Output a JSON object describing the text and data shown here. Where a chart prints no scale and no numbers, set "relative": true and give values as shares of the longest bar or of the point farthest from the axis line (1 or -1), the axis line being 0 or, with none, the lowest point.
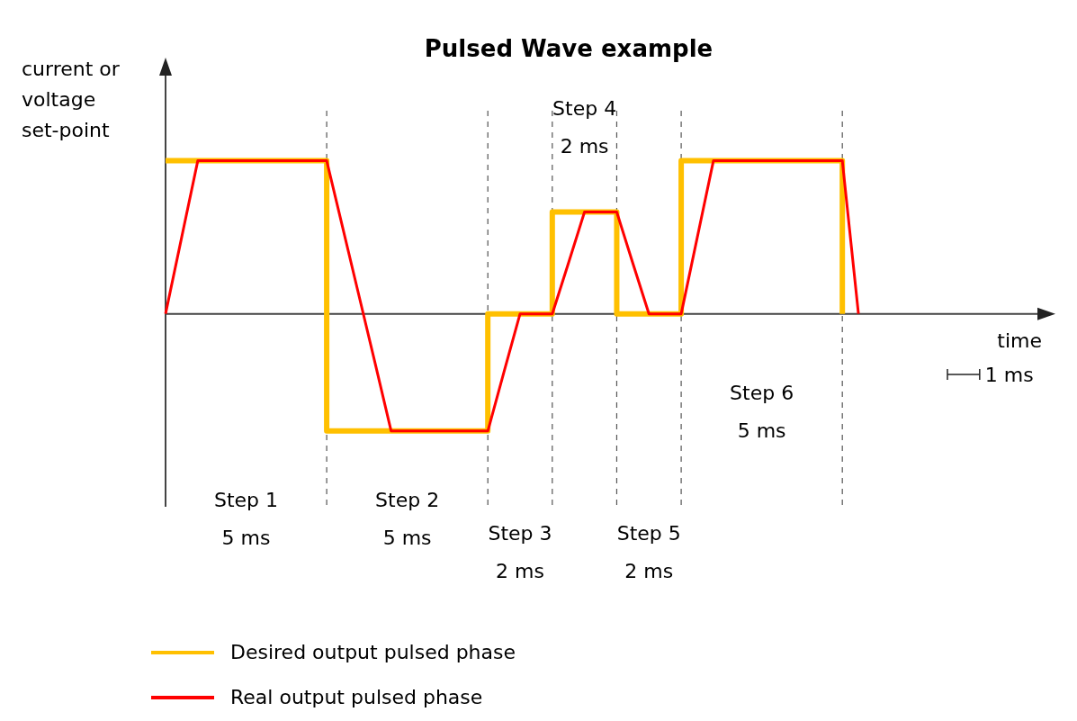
{
  "chart_data": {
    "type": "line",
    "title": "Pulsed Wave example",
    "xlabel": "time",
    "ylabel": "current or\nvoltage\nset-point",
    "relative": true,
    "categories": [
      null,
      null,
      null,
      null,
      null,
      null,
      null,
      null,
      null,
      null,
      null,
      null,
      null,
      null,
      null,
      null,
      null,
      null,
      null,
      null,
      null,
      null,
      null,
      null,
      null,
      null,
      null,
      null,
      null,
      null,
      null,
      null,
      null,
      null,
      null,
      null,
      null,
      null,
      null,
      null,
      null,
      null,
      null,
      null,
      null,
      null,
      null,
      null,
      null,
      null,
      null,
      null,
      null,
      null,
      null,
      null
    ],
    "legend": "bottom left",
    "line_style": "solid",
    "grid": "x",
    "series": [
      {
        "name": "Desired output pulsed phase",
        "type": "step",
        "color": "#ffc000",
        "values": [
          1,
          1,
          1,
          1,
          1,
          1,
          1,
          1,
          1,
          1,
          -0.765,
          -0.765,
          -0.765,
          -0.765,
          -0.765,
          -0.765,
          -0.765,
          -0.765,
          -0.765,
          -0.765,
          0,
          0,
          0,
          0,
          0.665,
          0.665,
          0.665,
          0.665,
          0,
          0,
          0,
          0,
          1,
          1,
          1,
          1,
          1,
          1,
          1,
          1,
          1,
          1,
          0,
          null,
          null,
          null,
          null,
          null,
          null,
          null,
          null,
          null,
          null,
          null,
          null,
          null
        ]
      },
      {
        "name": "Real output pulsed phase",
        "color": "#ff0000",
        "values": [
          0,
          0.5,
          1,
          1,
          1,
          1,
          1,
          1,
          1,
          1,
          1,
          0.56,
          0.12,
          -0.32,
          -0.765,
          -0.765,
          -0.765,
          -0.765,
          -0.765,
          -0.765,
          -0.765,
          -0.38,
          0,
          0,
          0,
          0.33,
          0.665,
          0.665,
          0.665,
          0.33,
          0,
          0,
          0,
          0.5,
          1,
          1,
          1,
          1,
          1,
          1,
          1,
          1,
          1,
          0,
          null,
          null,
          null,
          null,
          null,
          null,
          null,
          null,
          null,
          null,
          null,
          null
        ]
      }
    ],
    "annotations": [
      "Step 1\n5 ms",
      "Step 2\n5 ms",
      "Step 3\n2 ms",
      "Step 4\n2 ms",
      "Step 5\n2 ms",
      "Step 6\n5 ms",
      "1 ms"
    ]
  }
}
